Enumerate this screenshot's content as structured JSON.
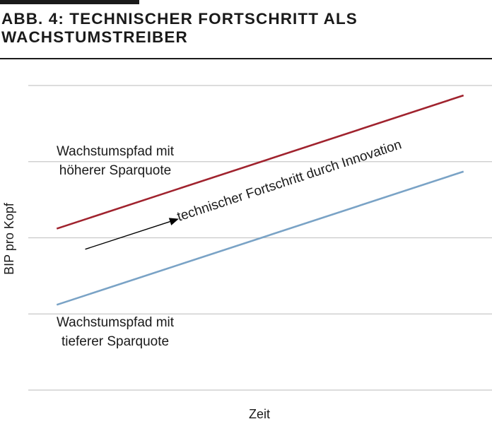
{
  "figure": {
    "title": "ABB. 4: TECHNISCHER FORTSCHRITT ALS WACHSTUMSTREIBER"
  },
  "chart_data": {
    "type": "line",
    "xlabel": "Zeit",
    "ylabel": "BIP pro Kopf",
    "x": [
      0,
      1
    ],
    "xlim": [
      -0.07,
      1.07
    ],
    "ylim": [
      0,
      4
    ],
    "grid": true,
    "gridlines": [
      0,
      1,
      2,
      3,
      4
    ],
    "series": [
      {
        "name": "Wachstumspfad mit höherer Sparquote",
        "label_lines": [
          "Wachstumspfad mit",
          "höherer Sparquote"
        ],
        "values": [
          2.12,
          3.87
        ],
        "color": "#a0232e"
      },
      {
        "name": "Wachstumspfad mit tieferer Sparquote",
        "label_lines": [
          "Wachstumspfad mit",
          "tieferer Sparquote"
        ],
        "values": [
          1.12,
          2.87
        ],
        "color": "#7aa3c6"
      }
    ],
    "annotation": {
      "text": "technischer Fortschritt durch Innovation",
      "arrow_from": [
        0.07,
        1.85
      ],
      "arrow_to": [
        0.3,
        2.25
      ],
      "color": "#000000"
    }
  }
}
